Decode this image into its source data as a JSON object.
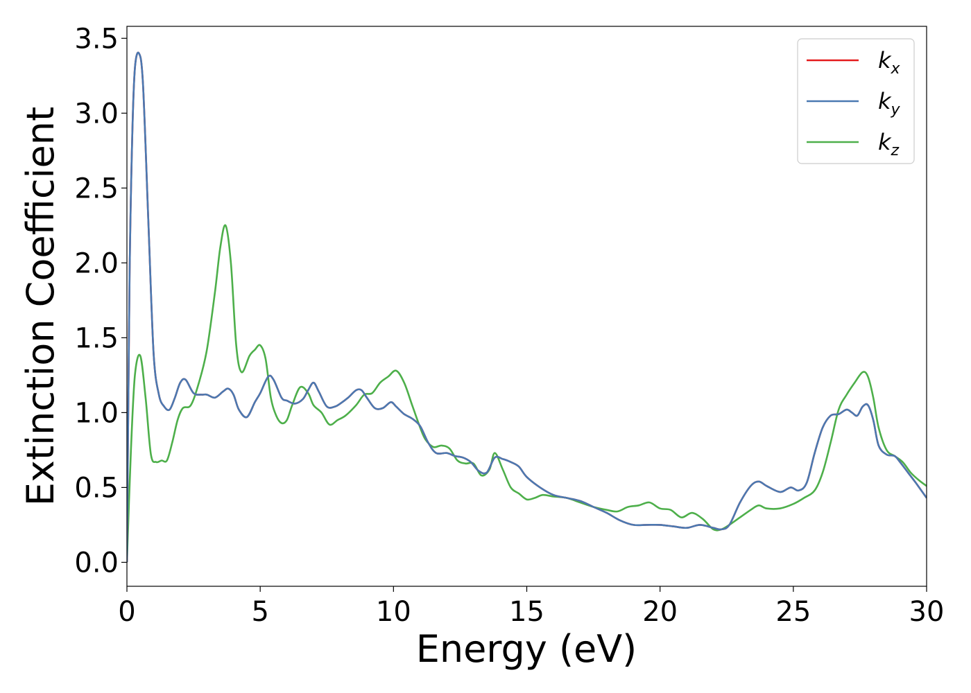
{
  "chart_data": {
    "type": "line",
    "title": "",
    "xlabel": "Energy (eV)",
    "ylabel": "Extinction Coefficient",
    "xlim": [
      0,
      30
    ],
    "ylim": [
      -0.16,
      3.58
    ],
    "xticks": [
      0,
      5,
      10,
      15,
      20,
      25,
      30
    ],
    "xtick_labels": [
      "0",
      "5",
      "10",
      "15",
      "20",
      "25",
      "30"
    ],
    "yticks": [
      0.0,
      0.5,
      1.0,
      1.5,
      2.0,
      2.5,
      3.0,
      3.5
    ],
    "ytick_labels": [
      "0.0",
      "0.5",
      "1.0",
      "1.5",
      "2.0",
      "2.5",
      "3.0",
      "3.5"
    ],
    "grid": false,
    "legend_position": "top-right",
    "series": [
      {
        "name": "k_x",
        "label_main": "k",
        "label_sub": "x",
        "color": "#e41a1c",
        "x": [
          0,
          0.1,
          0.2,
          0.3,
          0.45,
          0.6,
          0.8,
          1.0,
          1.2,
          1.4,
          1.6,
          1.8,
          2.0,
          2.2,
          2.5,
          2.8,
          3.0,
          3.3,
          3.6,
          3.8,
          4.0,
          4.2,
          4.5,
          4.8,
          5.0,
          5.3,
          5.5,
          5.8,
          6.0,
          6.3,
          6.6,
          6.8,
          7.0,
          7.2,
          7.5,
          7.8,
          8.0,
          8.3,
          8.6,
          8.8,
          9.0,
          9.3,
          9.6,
          9.9,
          10.1,
          10.4,
          10.7,
          11.0,
          11.3,
          11.6,
          12.0,
          12.3,
          12.6,
          12.9,
          13.2,
          13.5,
          13.8,
          14.1,
          14.4,
          14.7,
          15.0,
          15.5,
          16.0,
          16.5,
          17.0,
          17.5,
          18.0,
          18.5,
          19.0,
          19.5,
          20.0,
          20.5,
          21.0,
          21.5,
          22.0,
          22.3,
          22.6,
          23.0,
          23.4,
          23.7,
          24.0,
          24.5,
          24.9,
          25.2,
          25.5,
          25.8,
          26.1,
          26.4,
          26.7,
          27.0,
          27.2,
          27.4,
          27.6,
          27.8,
          28.0,
          28.2,
          28.5,
          28.8,
          29.0,
          29.3,
          29.6,
          30.0
        ],
        "y": [
          0.0,
          1.9,
          2.85,
          3.3,
          3.4,
          3.2,
          2.3,
          1.4,
          1.12,
          1.04,
          1.02,
          1.1,
          1.2,
          1.22,
          1.13,
          1.12,
          1.12,
          1.1,
          1.14,
          1.16,
          1.12,
          1.02,
          0.97,
          1.07,
          1.13,
          1.24,
          1.22,
          1.1,
          1.08,
          1.06,
          1.09,
          1.15,
          1.2,
          1.14,
          1.04,
          1.04,
          1.06,
          1.1,
          1.15,
          1.15,
          1.1,
          1.03,
          1.03,
          1.07,
          1.04,
          0.99,
          0.96,
          0.91,
          0.8,
          0.73,
          0.73,
          0.71,
          0.7,
          0.67,
          0.61,
          0.6,
          0.7,
          0.69,
          0.67,
          0.64,
          0.57,
          0.5,
          0.45,
          0.43,
          0.41,
          0.37,
          0.33,
          0.28,
          0.25,
          0.25,
          0.25,
          0.24,
          0.23,
          0.25,
          0.23,
          0.22,
          0.25,
          0.4,
          0.51,
          0.54,
          0.51,
          0.47,
          0.5,
          0.48,
          0.53,
          0.73,
          0.9,
          0.98,
          0.99,
          1.02,
          1.0,
          0.98,
          1.04,
          1.05,
          0.95,
          0.78,
          0.72,
          0.71,
          0.67,
          0.6,
          0.53,
          0.43
        ]
      },
      {
        "name": "k_y",
        "label_main": "k",
        "label_sub": "y",
        "color": "#4a79b1",
        "x": [
          0,
          0.1,
          0.2,
          0.3,
          0.45,
          0.6,
          0.8,
          1.0,
          1.2,
          1.4,
          1.6,
          1.8,
          2.0,
          2.2,
          2.5,
          2.8,
          3.0,
          3.3,
          3.6,
          3.8,
          4.0,
          4.2,
          4.5,
          4.8,
          5.0,
          5.3,
          5.5,
          5.8,
          6.0,
          6.3,
          6.6,
          6.8,
          7.0,
          7.2,
          7.5,
          7.8,
          8.0,
          8.3,
          8.6,
          8.8,
          9.0,
          9.3,
          9.6,
          9.9,
          10.1,
          10.4,
          10.7,
          11.0,
          11.3,
          11.6,
          12.0,
          12.3,
          12.6,
          12.9,
          13.2,
          13.5,
          13.8,
          14.1,
          14.4,
          14.7,
          15.0,
          15.5,
          16.0,
          16.5,
          17.0,
          17.5,
          18.0,
          18.5,
          19.0,
          19.5,
          20.0,
          20.5,
          21.0,
          21.5,
          22.0,
          22.3,
          22.6,
          23.0,
          23.4,
          23.7,
          24.0,
          24.5,
          24.9,
          25.2,
          25.5,
          25.8,
          26.1,
          26.4,
          26.7,
          27.0,
          27.2,
          27.4,
          27.6,
          27.8,
          28.0,
          28.2,
          28.5,
          28.8,
          29.0,
          29.3,
          29.6,
          30.0
        ],
        "y": [
          0.0,
          1.9,
          2.85,
          3.3,
          3.4,
          3.2,
          2.3,
          1.4,
          1.12,
          1.04,
          1.02,
          1.1,
          1.2,
          1.22,
          1.13,
          1.12,
          1.12,
          1.1,
          1.14,
          1.16,
          1.12,
          1.02,
          0.97,
          1.07,
          1.13,
          1.24,
          1.22,
          1.1,
          1.08,
          1.06,
          1.09,
          1.15,
          1.2,
          1.14,
          1.04,
          1.04,
          1.06,
          1.1,
          1.15,
          1.15,
          1.1,
          1.03,
          1.03,
          1.07,
          1.04,
          0.99,
          0.96,
          0.91,
          0.8,
          0.73,
          0.73,
          0.71,
          0.7,
          0.67,
          0.61,
          0.6,
          0.7,
          0.69,
          0.67,
          0.64,
          0.57,
          0.5,
          0.45,
          0.43,
          0.41,
          0.37,
          0.33,
          0.28,
          0.25,
          0.25,
          0.25,
          0.24,
          0.23,
          0.25,
          0.23,
          0.22,
          0.25,
          0.4,
          0.51,
          0.54,
          0.51,
          0.47,
          0.5,
          0.48,
          0.53,
          0.73,
          0.9,
          0.98,
          0.99,
          1.02,
          1.0,
          0.98,
          1.04,
          1.05,
          0.95,
          0.78,
          0.72,
          0.71,
          0.67,
          0.6,
          0.53,
          0.43
        ]
      },
      {
        "name": "k_z",
        "label_main": "k",
        "label_sub": "z",
        "color": "#4daf4a",
        "x": [
          0,
          0.15,
          0.3,
          0.5,
          0.7,
          0.9,
          1.1,
          1.3,
          1.5,
          1.7,
          1.9,
          2.1,
          2.4,
          2.7,
          3.0,
          3.3,
          3.5,
          3.7,
          3.9,
          4.1,
          4.3,
          4.6,
          4.8,
          5.0,
          5.2,
          5.4,
          5.6,
          5.8,
          6.0,
          6.2,
          6.5,
          6.8,
          7.0,
          7.3,
          7.6,
          7.9,
          8.2,
          8.6,
          8.9,
          9.2,
          9.5,
          9.8,
          10.1,
          10.4,
          10.7,
          11.0,
          11.2,
          11.5,
          11.8,
          12.1,
          12.4,
          12.7,
          13.0,
          13.3,
          13.6,
          13.8,
          14.1,
          14.4,
          14.7,
          15.0,
          15.3,
          15.6,
          16.0,
          16.5,
          17.0,
          17.5,
          18.0,
          18.4,
          18.8,
          19.2,
          19.6,
          20.0,
          20.4,
          20.8,
          21.2,
          21.6,
          22.0,
          22.3,
          22.6,
          23.0,
          23.4,
          23.7,
          24.0,
          24.5,
          25.0,
          25.4,
          25.8,
          26.1,
          26.4,
          26.7,
          27.0,
          27.3,
          27.6,
          27.8,
          28.0,
          28.2,
          28.5,
          28.8,
          29.1,
          29.4,
          29.7,
          30.0
        ],
        "y": [
          0.0,
          0.75,
          1.25,
          1.38,
          1.1,
          0.72,
          0.67,
          0.68,
          0.68,
          0.8,
          0.95,
          1.03,
          1.05,
          1.2,
          1.42,
          1.8,
          2.1,
          2.25,
          2.0,
          1.45,
          1.27,
          1.38,
          1.42,
          1.45,
          1.36,
          1.1,
          0.98,
          0.93,
          0.95,
          1.05,
          1.17,
          1.13,
          1.05,
          1.0,
          0.92,
          0.95,
          0.98,
          1.05,
          1.12,
          1.13,
          1.2,
          1.24,
          1.28,
          1.2,
          1.05,
          0.9,
          0.82,
          0.77,
          0.78,
          0.76,
          0.68,
          0.66,
          0.66,
          0.58,
          0.62,
          0.73,
          0.62,
          0.5,
          0.46,
          0.42,
          0.43,
          0.45,
          0.44,
          0.43,
          0.4,
          0.37,
          0.35,
          0.34,
          0.37,
          0.38,
          0.4,
          0.36,
          0.35,
          0.3,
          0.33,
          0.29,
          0.22,
          0.22,
          0.25,
          0.3,
          0.35,
          0.38,
          0.36,
          0.36,
          0.39,
          0.43,
          0.48,
          0.6,
          0.8,
          1.02,
          1.12,
          1.2,
          1.27,
          1.24,
          1.1,
          0.9,
          0.75,
          0.71,
          0.67,
          0.6,
          0.55,
          0.51
        ]
      }
    ]
  }
}
